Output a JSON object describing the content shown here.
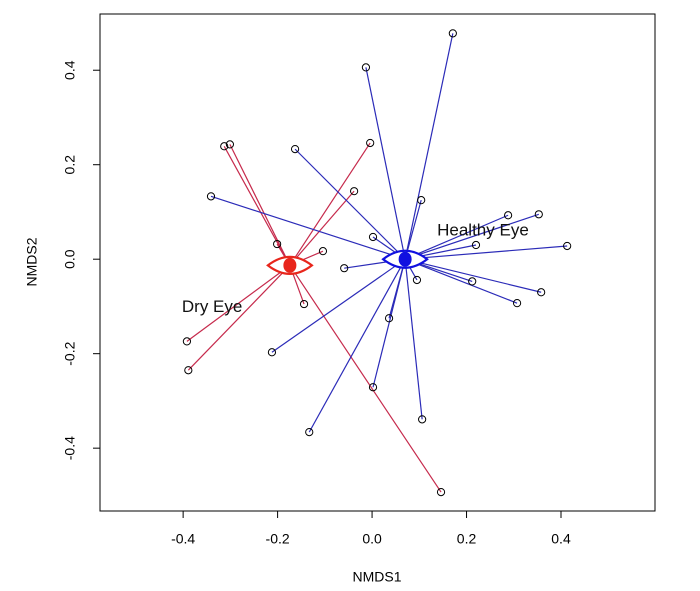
{
  "chart_data": {
    "type": "scatter",
    "x_label": "NMDS1",
    "y_label": "NMDS2",
    "xlim": [
      -0.576,
      0.599
    ],
    "ylim": [
      -0.533,
      0.519
    ],
    "xticks": [
      -0.4,
      -0.2,
      {
        "value": 0,
        "label": "0.0"
      },
      0.2,
      0.4
    ],
    "yticks": [
      -0.4,
      -0.2,
      {
        "value": 0,
        "label": "0.0"
      },
      0.2,
      0.4
    ],
    "series": [
      {
        "name": "Dry Eye",
        "color": "#c62a4c",
        "centroid_color": "#e8261c",
        "centroid": [
          -0.174,
          -0.013
        ],
        "x": [
          -0.313,
          -0.301,
          -0.004,
          -0.038,
          -0.201,
          -0.104,
          -0.144,
          -0.392,
          -0.389,
          0.146
        ],
        "y": [
          0.239,
          0.243,
          0.246,
          0.144,
          0.032,
          0.017,
          -0.095,
          -0.174,
          -0.235,
          -0.493
        ]
      },
      {
        "name": "Healthy Eye",
        "color": "#2b2bb8",
        "centroid_color": "#1010e0",
        "centroid": [
          0.07,
          0.0
        ],
        "x": [
          0.171,
          -0.013,
          -0.163,
          -0.341,
          0.104,
          0.002,
          0.288,
          0.353,
          0.22,
          0.413,
          -0.059,
          0.095,
          0.212,
          0.358,
          0.307,
          0.036,
          -0.212,
          0.002,
          -0.133,
          0.106
        ],
        "y": [
          0.478,
          0.406,
          0.233,
          0.133,
          0.125,
          0.047,
          0.093,
          0.095,
          0.03,
          0.028,
          -0.019,
          -0.044,
          -0.047,
          -0.07,
          -0.093,
          -0.125,
          -0.197,
          -0.271,
          -0.366,
          -0.339
        ]
      }
    ]
  }
}
